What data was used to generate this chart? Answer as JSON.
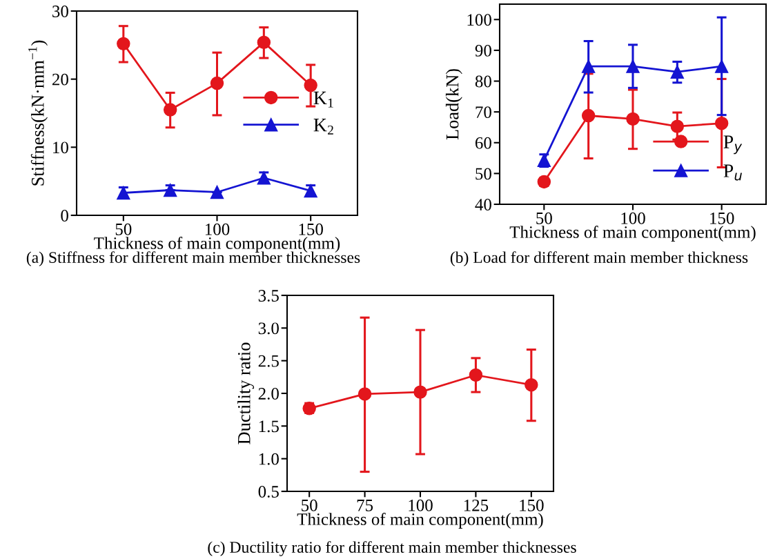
{
  "chart_data": [
    {
      "type": "line",
      "xlabel": "Thickness of main component(mm)",
      "ylabel": "Stiffness(kN·mm$^{−1}$)",
      "annotations": [
        "(a) Stiffness for different main member thicknesses"
      ],
      "x": [
        50,
        75,
        100,
        125,
        150
      ],
      "xlim": [
        25,
        175
      ],
      "xticks": [
        50,
        100,
        150
      ],
      "ylim": [
        0,
        30
      ],
      "yticks": [
        0,
        10,
        20,
        30
      ],
      "legend": "right",
      "grid": false,
      "series": [
        {
          "name": "K$_{1}$",
          "color": "#e3161c",
          "marker": "circle",
          "values": [
            25.2,
            15.5,
            19.4,
            25.4,
            19.1
          ],
          "errors": [
            [
              22.5,
              27.8
            ],
            [
              12.9,
              18.0
            ],
            [
              14.7,
              23.9
            ],
            [
              23.1,
              27.6
            ],
            [
              16.0,
              22.1
            ]
          ]
        },
        {
          "name": "K$_{2}$",
          "color": "#1414d2",
          "marker": "triangle",
          "values": [
            3.3,
            3.7,
            3.4,
            5.5,
            3.6
          ],
          "errors": [
            [
              2.5,
              4.1
            ],
            [
              3.7,
              4.4
            ],
            null,
            [
              4.8,
              6.3
            ],
            [
              2.9,
              4.4
            ]
          ]
        }
      ]
    },
    {
      "type": "line",
      "xlabel": "Thickness of main component(mm)",
      "ylabel": "Load(kN)",
      "annotations": [
        "(b) Load for different main member thickness"
      ],
      "x": [
        50,
        75,
        100,
        125,
        150
      ],
      "xlim": [
        25,
        175
      ],
      "xticks": [
        50,
        100,
        150
      ],
      "ylim": [
        40,
        105
      ],
      "yticks": [
        40,
        50,
        60,
        70,
        80,
        90,
        100
      ],
      "legend": "bottom right",
      "grid": false,
      "series": [
        {
          "name": "P$_{y}$",
          "color": "#e3161c",
          "marker": "circle",
          "values": [
            47.3,
            68.8,
            67.7,
            65.3,
            66.3
          ],
          "errors": [
            [
              46.0,
              48.5
            ],
            [
              54.9,
              82.4
            ],
            [
              58.0,
              77.2
            ],
            [
              61.0,
              69.8
            ],
            [
              52.0,
              80.7
            ]
          ]
        },
        {
          "name": "P$_{u}$",
          "color": "#1414d2",
          "marker": "triangle",
          "values": [
            54.3,
            84.8,
            84.8,
            83.0,
            84.8
          ],
          "errors": [
            [
              52.2,
              56.2
            ],
            [
              76.3,
              93.0
            ],
            [
              77.8,
              91.8
            ],
            [
              79.5,
              86.3
            ],
            [
              69.0,
              100.7
            ]
          ]
        }
      ]
    },
    {
      "type": "line",
      "xlabel": "Thickness of main component(mm)",
      "ylabel": "Ductility ratio",
      "annotations": [
        "(c) Ductility ratio for different main member thicknesses"
      ],
      "x": [
        50,
        75,
        100,
        125,
        150
      ],
      "xlim": [
        40,
        160
      ],
      "xticks": [
        50,
        75,
        100,
        125,
        150
      ],
      "ylim": [
        0.5,
        3.5
      ],
      "yticks": [
        {
          "value": 0.5,
          "label": "0.5"
        },
        {
          "value": 1.0,
          "label": "1.0"
        },
        {
          "value": 1.5,
          "label": "1.5"
        },
        {
          "value": 2.0,
          "label": "2.0"
        },
        {
          "value": 2.5,
          "label": "2.5"
        },
        {
          "value": 3.0,
          "label": "3.0"
        },
        {
          "value": 3.5,
          "label": "3.5"
        }
      ],
      "legend": false,
      "grid": false,
      "series": [
        {
          "color": "#e3161c",
          "marker": "circle",
          "values": [
            1.77,
            1.99,
            2.02,
            2.28,
            2.13
          ],
          "errors": [
            [
              1.7,
              1.85
            ],
            [
              0.8,
              3.16
            ],
            [
              1.07,
              2.97
            ],
            [
              2.02,
              2.54
            ],
            [
              1.58,
              2.67
            ]
          ]
        }
      ]
    }
  ]
}
